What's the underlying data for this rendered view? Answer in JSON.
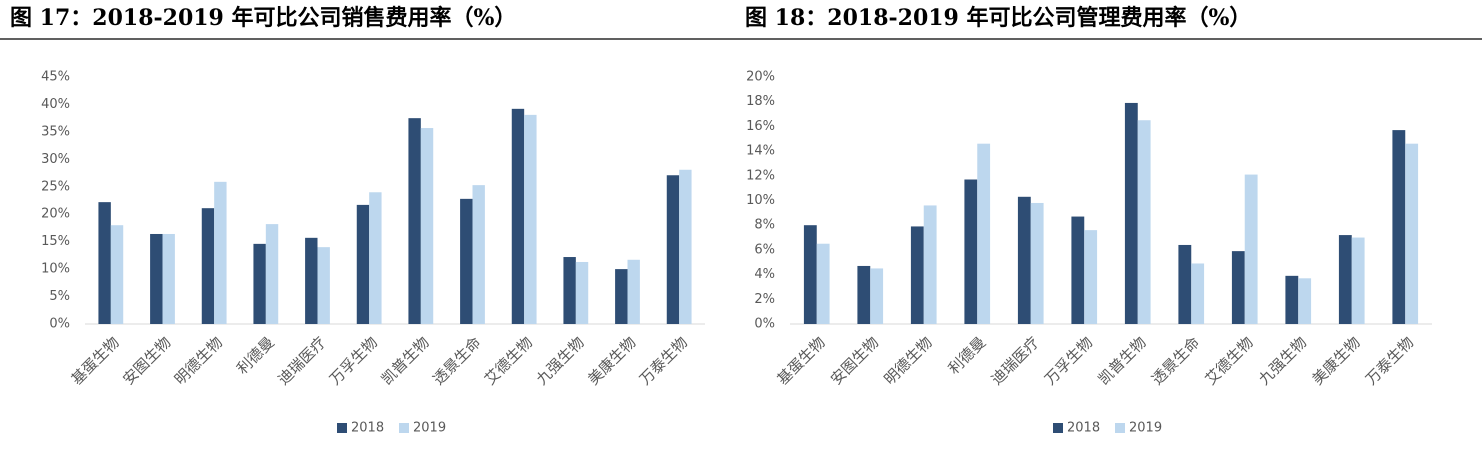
{
  "chart_data": [
    {
      "type": "bar",
      "title": "图 17：2018-2019 年可比公司销售费用率（%）",
      "categories": [
        "基蛋生物",
        "安图生物",
        "明德生物",
        "利德曼",
        "迪瑞医疗",
        "万孚生物",
        "凯普生物",
        "透景生命",
        "艾德生物",
        "九强生物",
        "美康生物",
        "万泰生物"
      ],
      "series": [
        {
          "name": "2018",
          "color": "#2e4d74",
          "values": [
            22.2,
            16.4,
            21.1,
            14.6,
            15.7,
            21.7,
            37.5,
            22.8,
            39.2,
            12.2,
            10.0,
            27.1
          ]
        },
        {
          "name": "2019",
          "color": "#bdd7ee",
          "values": [
            18.0,
            16.4,
            25.9,
            18.2,
            14.0,
            24.0,
            35.7,
            25.3,
            38.1,
            11.3,
            11.7,
            28.1
          ]
        }
      ],
      "ylim": [
        0,
        45
      ],
      "yticks": [
        {
          "value": 0,
          "label": "0%"
        },
        {
          "value": 5,
          "label": "5%"
        },
        {
          "value": 10,
          "label": "10%"
        },
        {
          "value": 15,
          "label": "15%"
        },
        {
          "value": 20,
          "label": "20%"
        },
        {
          "value": 25,
          "label": "25%"
        },
        {
          "value": 30,
          "label": "30%"
        },
        {
          "value": 35,
          "label": "35%"
        },
        {
          "value": 40,
          "label": "40%"
        },
        {
          "value": 45,
          "label": "45%"
        }
      ],
      "grid": false,
      "legend": "bottom"
    },
    {
      "type": "bar",
      "title": "图 18：2018-2019 年可比公司管理费用率（%）",
      "categories": [
        "基蛋生物",
        "安图生物",
        "明德生物",
        "利德曼",
        "迪瑞医疗",
        "万孚生物",
        "凯普生物",
        "透景生命",
        "艾德生物",
        "九强生物",
        "美康生物",
        "万泰生物"
      ],
      "series": [
        {
          "name": "2018",
          "color": "#2e4d74",
          "values": [
            8.0,
            4.7,
            7.9,
            11.7,
            10.3,
            8.7,
            17.9,
            6.4,
            5.9,
            3.9,
            7.2,
            15.7
          ]
        },
        {
          "name": "2019",
          "color": "#bdd7ee",
          "values": [
            6.5,
            4.5,
            9.6,
            14.6,
            9.8,
            7.6,
            16.5,
            4.9,
            12.1,
            3.7,
            7.0,
            14.6
          ]
        }
      ],
      "ylim": [
        0,
        20
      ],
      "yticks": [
        {
          "value": 0,
          "label": "0%"
        },
        {
          "value": 2,
          "label": "2%"
        },
        {
          "value": 4,
          "label": "4%"
        },
        {
          "value": 6,
          "label": "6%"
        },
        {
          "value": 8,
          "label": "8%"
        },
        {
          "value": 10,
          "label": "10%"
        },
        {
          "value": 12,
          "label": "12%"
        },
        {
          "value": 14,
          "label": "14%"
        },
        {
          "value": 16,
          "label": "16%"
        },
        {
          "value": 18,
          "label": "18%"
        },
        {
          "value": 20,
          "label": "20%"
        }
      ],
      "grid": false,
      "legend": "bottom"
    }
  ]
}
